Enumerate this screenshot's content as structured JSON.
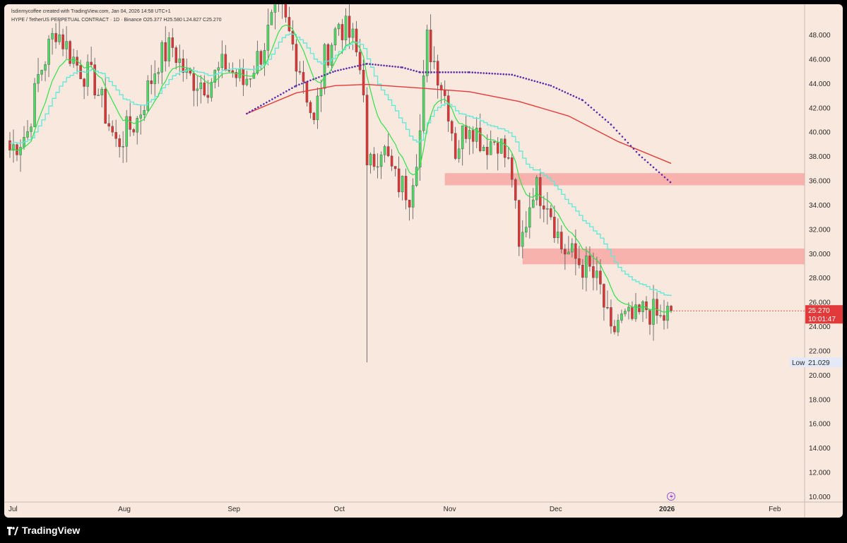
{
  "header": {
    "credit": "lsdinmycoffee created with TradingView.com, Jan 04, 2026 14:58 UTC+1",
    "symbol_line": "HYPE / TetherUS PERPETUAL CONTRACT · 1D · Binance  O25.377  H25.580  L24.827  C25.270"
  },
  "footer": {
    "brand": "TradingView"
  },
  "colors": {
    "background": "#f9e8dd",
    "up": "#4cd964",
    "down": "#e03434",
    "ema_fast": "#33e04c",
    "ema_slow": "#5fe8d8",
    "ma_red": "#e43a3a",
    "ma_dots": "#5a2aa8",
    "zone": "#f8a8a4",
    "price_tag": "#e23a3a"
  },
  "price_tag": {
    "price": "25.270",
    "countdown": "10:01:47"
  },
  "low_tag": {
    "label": "Low",
    "value": "21.029"
  },
  "chart_data": {
    "type": "candlestick",
    "title": "",
    "x_axis_labels": [
      "Jul",
      "Aug",
      "Sep",
      "Oct",
      "Nov",
      "Dec",
      "2026",
      "Feb"
    ],
    "y_ticks": [
      "48.000",
      "46.000",
      "44.000",
      "42.000",
      "40.000",
      "38.000",
      "36.000",
      "34.000",
      "32.000",
      "30.000",
      "28.000",
      "26.000",
      "24.000",
      "22.000",
      "20.000",
      "18.000",
      "16.000",
      "14.000",
      "12.000",
      "10.000"
    ],
    "ylim": [
      9.5,
      50
    ],
    "x_dates": [
      "2025-07-01",
      "2025-08-01",
      "2025-09-01",
      "2025-10-01",
      "2025-11-01",
      "2025-12-01",
      "2026-01-01",
      "2026-02-01"
    ],
    "anchor_ohlc_waypoints": [
      [
        "2025-07-01",
        38.5
      ],
      [
        "2025-07-06",
        40.0
      ],
      [
        "2025-07-09",
        44.5
      ],
      [
        "2025-07-14",
        48.5
      ],
      [
        "2025-07-20",
        45.5
      ],
      [
        "2025-07-25",
        44.0
      ],
      [
        "2025-07-31",
        39.0
      ],
      [
        "2025-08-06",
        41.0
      ],
      [
        "2025-08-12",
        46.0
      ],
      [
        "2025-08-16",
        47.0
      ],
      [
        "2025-08-20",
        44.5
      ],
      [
        "2025-08-26",
        44.0
      ],
      [
        "2025-08-31",
        45.5
      ],
      [
        "2025-09-05",
        44.0
      ],
      [
        "2025-09-10",
        46.5
      ],
      [
        "2025-09-15",
        50.5
      ],
      [
        "2025-09-22",
        44.5
      ],
      [
        "2025-09-25",
        40.5
      ],
      [
        "2025-09-28",
        46.0
      ],
      [
        "2025-10-02",
        49.0
      ],
      [
        "2025-10-06",
        47.5
      ],
      [
        "2025-10-09",
        44.0
      ],
      [
        "2025-10-10",
        36.5
      ],
      [
        "2025-10-14",
        39.0
      ],
      [
        "2025-10-18",
        36.0
      ],
      [
        "2025-10-22",
        35.0
      ],
      [
        "2025-10-25",
        40.0
      ],
      [
        "2025-10-27",
        47.5
      ],
      [
        "2025-10-30",
        45.0
      ],
      [
        "2025-11-02",
        42.0
      ],
      [
        "2025-11-04",
        38.5
      ],
      [
        "2025-11-08",
        41.0
      ],
      [
        "2025-11-12",
        39.0
      ],
      [
        "2025-11-16",
        39.5
      ],
      [
        "2025-11-20",
        36.5
      ],
      [
        "2025-11-22",
        30.0
      ],
      [
        "2025-11-26",
        35.5
      ],
      [
        "2025-11-30",
        34.5
      ],
      [
        "2025-12-04",
        30.5
      ],
      [
        "2025-12-08",
        29.5
      ],
      [
        "2025-12-12",
        28.5
      ],
      [
        "2025-12-15",
        27.0
      ],
      [
        "2025-12-18",
        23.0
      ],
      [
        "2025-12-20",
        24.5
      ],
      [
        "2025-12-25",
        24.5
      ],
      [
        "2025-12-28",
        25.5
      ],
      [
        "2026-01-01",
        24.5
      ],
      [
        "2026-01-04",
        25.27
      ]
    ],
    "long_wick_low": {
      "date": "2025-10-10",
      "price": 21.029
    },
    "ma_red_line": [
      [
        "2025-09-06",
        41.5
      ],
      [
        "2025-09-20",
        43.2
      ],
      [
        "2025-10-01",
        43.8
      ],
      [
        "2025-10-10",
        43.9
      ],
      [
        "2025-10-25",
        43.6
      ],
      [
        "2025-11-08",
        43.3
      ],
      [
        "2025-11-22",
        42.5
      ],
      [
        "2025-12-06",
        41.3
      ],
      [
        "2025-12-20",
        39.2
      ],
      [
        "2026-01-04",
        37.4
      ]
    ],
    "ma_dots_line": [
      [
        "2025-09-06",
        41.5
      ],
      [
        "2025-09-20",
        43.8
      ],
      [
        "2025-10-01",
        45.0
      ],
      [
        "2025-10-10",
        45.6
      ],
      [
        "2025-10-20",
        45.3
      ],
      [
        "2025-10-25",
        44.9
      ],
      [
        "2025-11-08",
        44.9
      ],
      [
        "2025-11-20",
        44.7
      ],
      [
        "2025-12-01",
        43.8
      ],
      [
        "2025-12-10",
        42.6
      ],
      [
        "2025-12-18",
        40.6
      ],
      [
        "2025-12-26",
        38.1
      ],
      [
        "2026-01-04",
        35.8
      ]
    ],
    "zones": [
      {
        "from": "2025-11-01",
        "to_edge": true,
        "low": 35.6,
        "high": 36.6
      },
      {
        "from": "2025-11-23",
        "to_edge": true,
        "low": 29.1,
        "high": 30.4
      }
    ],
    "last_price": 25.27,
    "low_label_price": 21.029
  }
}
